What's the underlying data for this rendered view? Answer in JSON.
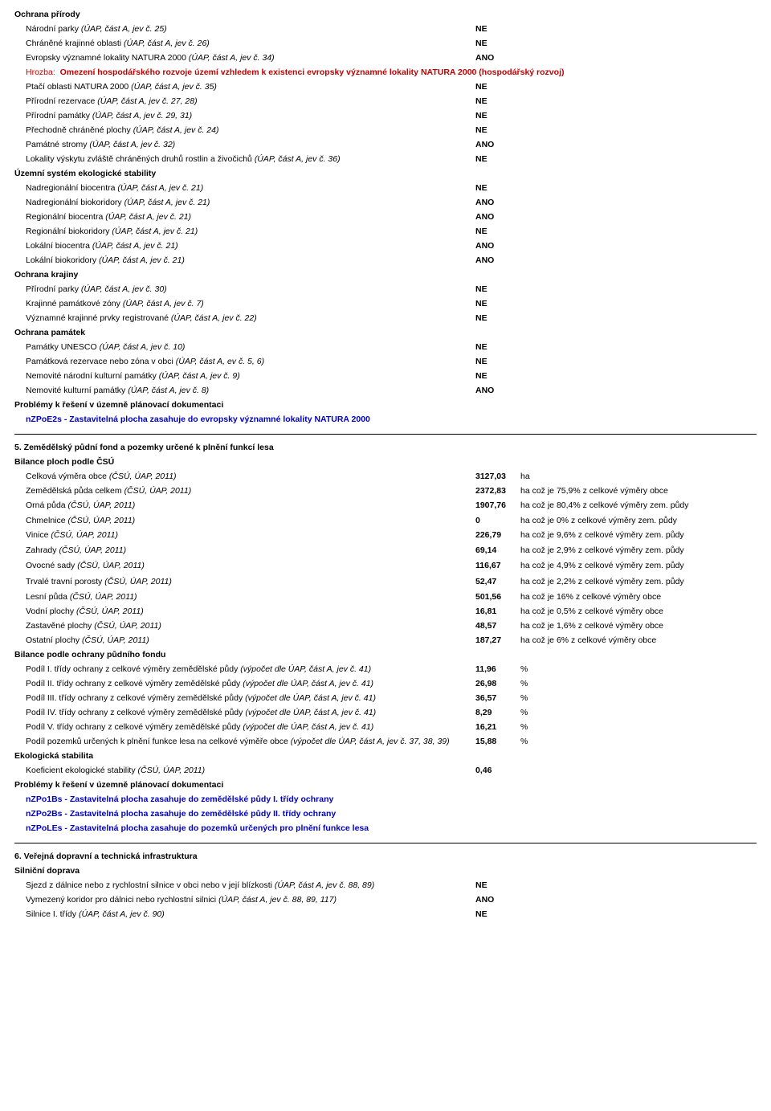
{
  "ochrana_prirody": {
    "heading": "Ochrana přírody",
    "rows": [
      {
        "label": "Národní parky ",
        "ital": "(ÚAP, část A, jev č. 25)",
        "val": "NE"
      },
      {
        "label": "Chráněné krajinné oblasti ",
        "ital": "(ÚAP, část A, jev č. 26)",
        "val": "NE"
      },
      {
        "label": "Evropsky významné lokality NATURA 2000 ",
        "ital": "(ÚAP, část A, jev č. 34)",
        "val": "ANO"
      }
    ],
    "hrozba_prefix": "Hrozba:",
    "hrozba_text": "Omezení hospodářského rozvoje území vzhledem k existenci evropsky významné lokality NATURA 2000 (hospodářský rozvoj)",
    "rows2": [
      {
        "label": "Ptačí oblasti NATURA 2000 ",
        "ital": "(ÚAP, část A, jev č. 35)",
        "val": "NE"
      },
      {
        "label": "Přírodní rezervace ",
        "ital": "(ÚAP, část A, jev č. 27, 28)",
        "val": "NE"
      },
      {
        "label": "Přírodní památky ",
        "ital": "(ÚAP, část A, jev č. 29, 31)",
        "val": "NE"
      },
      {
        "label": "Přechodně chráněné plochy ",
        "ital": "(ÚAP, část A, jev č. 24)",
        "val": "NE"
      },
      {
        "label": "Památné stromy ",
        "ital": "(ÚAP, část A, jev č. 32)",
        "val": "ANO"
      },
      {
        "label": "Lokality výskytu zvláště chráněných druhů rostlin a živočichů ",
        "ital": "(ÚAP, část A, jev č. 36)",
        "val": "NE"
      }
    ]
  },
  "uses": {
    "heading": "Územní systém ekologické stability",
    "rows": [
      {
        "label": "Nadregionální biocentra ",
        "ital": "(ÚAP, část A, jev č. 21)",
        "val": "NE"
      },
      {
        "label": "Nadregionální biokoridory ",
        "ital": "(ÚAP, část A, jev č. 21)",
        "val": "ANO"
      },
      {
        "label": "Regionální biocentra ",
        "ital": "(ÚAP, část A, jev č. 21)",
        "val": "ANO"
      },
      {
        "label": "Regionální biokoridory ",
        "ital": "(ÚAP, část A, jev č. 21)",
        "val": "NE"
      },
      {
        "label": "Lokální biocentra ",
        "ital": "(ÚAP, část A, jev č. 21)",
        "val": "ANO"
      },
      {
        "label": "Lokální biokoridory ",
        "ital": "(ÚAP, část A, jev č. 21)",
        "val": "ANO"
      }
    ]
  },
  "ochrana_krajiny": {
    "heading": "Ochrana krajiny",
    "rows": [
      {
        "label": "Přírodní parky ",
        "ital": "(ÚAP, část A, jev č. 30)",
        "val": "NE"
      },
      {
        "label": "Krajinné památkové zóny ",
        "ital": "(ÚAP, část A, jev č. 7)",
        "val": "NE"
      },
      {
        "label": "Významné krajinné prvky registrované ",
        "ital": "(ÚAP, část A, jev č. 22)",
        "val": "NE"
      }
    ]
  },
  "ochrana_pamatek": {
    "heading": "Ochrana památek",
    "rows": [
      {
        "label": "Památky UNESCO ",
        "ital": "(ÚAP, část A, jev č. 10)",
        "val": "NE"
      },
      {
        "label": "Památková rezervace nebo zóna v obci ",
        "ital": "(ÚAP, část A, ev č. 5, 6)",
        "val": "NE"
      },
      {
        "label": "Nemovité národní kulturní památky ",
        "ital": "(ÚAP, část A, jev č. 9)",
        "val": "NE"
      },
      {
        "label": "Nemovité kulturní památky ",
        "ital": "(ÚAP, část A, jev č. 8)",
        "val": "ANO"
      }
    ]
  },
  "problemy1": {
    "heading": "Problémy k řešení v územně plánovací dokumentaci",
    "lines": [
      "nZPoE2s - Zastavitelná plocha zasahuje do evropsky významné lokality NATURA 2000"
    ]
  },
  "sec5": {
    "heading": "5. Zemědělský půdní fond a pozemky určené k plnění funkcí lesa",
    "bilance_head": "Bilance ploch podle ČSÚ",
    "rows": [
      {
        "label": "Celková výměra obce ",
        "ital": "(ČSÚ, ÚAP, 2011)",
        "val": "3127,03",
        "extra": "ha"
      },
      {
        "label": "Zemědělská půda celkem ",
        "ital": "(ČSÚ, ÚAP, 2011)",
        "val": "2372,83",
        "extra": "ha což je 75,9%  z celkové výměry obce"
      },
      {
        "label": "Orná půda ",
        "ital": "(ČSÚ, ÚAP, 2011)",
        "val": "1907,76",
        "extra": "ha což je 80,4%  z celkové výměry zem. půdy",
        "two": true
      },
      {
        "label": "Chmelnice ",
        "ital": "(ČSÚ, ÚAP, 2011)",
        "val": "0",
        "extra": "ha což je 0%  z celkové výměry zem. půdy"
      },
      {
        "label": "Vinice ",
        "ital": "(ČSÚ, ÚAP, 2011)",
        "val": "226,79",
        "extra": "ha což je 9,6%  z celkové výměry zem. půdy",
        "two": true
      },
      {
        "label": "Zahrady ",
        "ital": "(ČSÚ, ÚAP, 2011)",
        "val": "69,14",
        "extra": "ha což je 2,9%  z celkové výměry zem. půdy",
        "two": true
      },
      {
        "label": "Ovocné sady ",
        "ital": "(ČSÚ, ÚAP, 2011)",
        "val": "116,67",
        "extra": "ha což je 4,9%  z celkové výměry zem. půdy",
        "two": true
      },
      {
        "label": "Trvalé travní porosty ",
        "ital": "(ČSÚ, ÚAP, 2011)",
        "val": "52,47",
        "extra": "ha což je 2,2%  z celkové výměry zem. půdy",
        "two": true
      },
      {
        "label": "Lesní půda ",
        "ital": "(ČSÚ, ÚAP, 2011)",
        "val": "501,56",
        "extra": "ha což je 16%  z celkové výměry obce"
      },
      {
        "label": "Vodní plochy ",
        "ital": "(ČSÚ, ÚAP, 2011)",
        "val": "16,81",
        "extra": "ha což je 0,5%  z celkové výměry obce"
      },
      {
        "label": "Zastavěné plochy ",
        "ital": "(ČSÚ, ÚAP, 2011)",
        "val": "48,57",
        "extra": "ha což je 1,6%  z celkové výměry obce"
      },
      {
        "label": "Ostatní plochy ",
        "ital": "(ČSÚ, ÚAP, 2011)",
        "val": "187,27",
        "extra": "ha což je 6%  z celkové výměry obce"
      }
    ],
    "bilance2_head": "Bilance podle ochrany půdního fondu",
    "rows2": [
      {
        "label": "Podíl I. třídy ochrany z celkové výměry zemědělské půdy ",
        "ital": "(výpočet dle ÚAP, část A, jev č. 41)",
        "val": "11,96",
        "extra": "%"
      },
      {
        "label": "Podíl II. třídy ochrany z celkové výměry zemědělské půdy ",
        "ital": "(výpočet dle ÚAP, část A, jev č. 41)",
        "val": "26,98",
        "extra": "%"
      },
      {
        "label": "Podíl III. třídy ochrany z celkové výměry zemědělské půdy ",
        "ital": "(výpočet dle ÚAP, část A, jev č. 41)",
        "val": "36,57",
        "extra": "%"
      },
      {
        "label": "Podíl IV. třídy ochrany z celkové výměry zemědělské půdy ",
        "ital": "(výpočet dle ÚAP, část A, jev č. 41)",
        "val": "8,29",
        "extra": "%"
      },
      {
        "label": "Podíl V. třídy ochrany z celkové výměry zemědělské půdy ",
        "ital": "(výpočet dle ÚAP, část A, jev č. 41)",
        "val": "16,21",
        "extra": "%"
      },
      {
        "label": "Podíl pozemků určených k plnění funkce lesa na celkové výměře obce ",
        "ital": "(výpočet dle ÚAP, část A, jev č. 37, 38, 39)",
        "val": "15,88",
        "extra": "%"
      }
    ],
    "eko_head": "Ekologická stabilita",
    "rows3": [
      {
        "label": "Koeficient ekologické stability ",
        "ital": "(ČSÚ, ÚAP, 2011)",
        "val": "0,46",
        "extra": ""
      }
    ]
  },
  "problemy2": {
    "heading": "Problémy k řešení v územně plánovací dokumentaci",
    "lines": [
      "nZPo1Bs - Zastavitelná plocha zasahuje do zemědělské půdy I. třídy ochrany",
      "nZPo2Bs - Zastavitelná plocha zasahuje do zemědělské půdy II. třídy ochrany",
      "nZPoLEs - Zastavitelná plocha zasahuje do pozemků určených pro plnění funkce lesa"
    ]
  },
  "sec6": {
    "heading": "6. Veřejná dopravní a technická infrastruktura",
    "silnicni_head": "Silniční doprava",
    "rows": [
      {
        "label": "Sjezd z dálnice nebo z rychlostní silnice v obci nebo v její blízkosti ",
        "ital": "(ÚAP, část A, jev č. 88, 89)",
        "val": "NE"
      },
      {
        "label": "Vymezený koridor pro dálnici nebo rychlostní silnici ",
        "ital": "(ÚAP, část A, jev č. 88, 89, 117)",
        "val": "ANO"
      },
      {
        "label": "Silnice I. třídy ",
        "ital": "(ÚAP, část A, jev č. 90)",
        "val": "NE"
      }
    ]
  }
}
